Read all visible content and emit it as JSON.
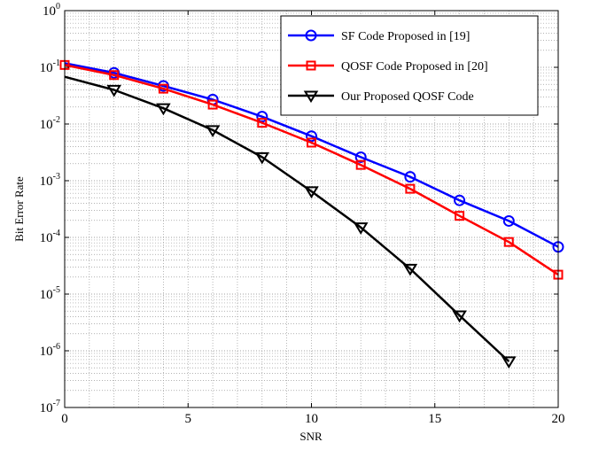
{
  "chart_data": {
    "type": "line",
    "xlabel": "SNR",
    "ylabel": "Bit Error Rate",
    "xlim": [
      0,
      20
    ],
    "ylim": [
      1e-07,
      1
    ],
    "yscale": "log",
    "grid": true,
    "legend_position": "top-right",
    "x_ticks": [
      "0",
      "5",
      "10",
      "15",
      "20"
    ],
    "y_tick_base": "10",
    "y_tick_exponents": [
      "0",
      "-1",
      "-2",
      "-3",
      "-4",
      "-5",
      "-6",
      "-7"
    ],
    "series": [
      {
        "name": "SF Code Proposed in [19]",
        "color": "#0000ff",
        "marker": "circle",
        "line": {
          "x": [
            0,
            20
          ],
          "y": [
            0.118,
            6.8e-05
          ]
        },
        "points": [
          {
            "x": 2,
            "y": 0.08
          },
          {
            "x": 4,
            "y": 0.047
          },
          {
            "x": 6,
            "y": 0.027
          },
          {
            "x": 8,
            "y": 0.0135
          },
          {
            "x": 10,
            "y": 0.0061
          },
          {
            "x": 12,
            "y": 0.0026
          },
          {
            "x": 14,
            "y": 0.00117
          },
          {
            "x": 16,
            "y": 0.00045
          },
          {
            "x": 18,
            "y": 0.000195
          },
          {
            "x": 20,
            "y": 6.8e-05
          }
        ]
      },
      {
        "name": "QOSF Code Proposed in [20]",
        "color": "#ff0000",
        "marker": "square",
        "line": {
          "x": [
            0,
            20
          ],
          "y": [
            0.11,
            2.2e-05
          ]
        },
        "points": [
          {
            "x": 0,
            "y": 0.11
          },
          {
            "x": 2,
            "y": 0.073
          },
          {
            "x": 4,
            "y": 0.042
          },
          {
            "x": 6,
            "y": 0.022
          },
          {
            "x": 8,
            "y": 0.0105
          },
          {
            "x": 10,
            "y": 0.0047
          },
          {
            "x": 12,
            "y": 0.0019
          },
          {
            "x": 14,
            "y": 0.00072
          },
          {
            "x": 16,
            "y": 0.00024
          },
          {
            "x": 18,
            "y": 8.3e-05
          },
          {
            "x": 20,
            "y": 2.2e-05
          }
        ]
      },
      {
        "name": "Our Proposed QOSF Code",
        "color": "#000000",
        "marker": "triangle-down",
        "line": {
          "x": [
            0,
            18
          ],
          "y": [
            0.068,
            6.5e-07
          ]
        },
        "points": [
          {
            "x": 2,
            "y": 0.04
          },
          {
            "x": 4,
            "y": 0.019
          },
          {
            "x": 6,
            "y": 0.0078
          },
          {
            "x": 8,
            "y": 0.0026
          },
          {
            "x": 10,
            "y": 0.00065
          },
          {
            "x": 12,
            "y": 0.00015
          },
          {
            "x": 14,
            "y": 2.8e-05
          },
          {
            "x": 16,
            "y": 4.2e-06
          },
          {
            "x": 18,
            "y": 6.5e-07
          }
        ]
      }
    ]
  }
}
